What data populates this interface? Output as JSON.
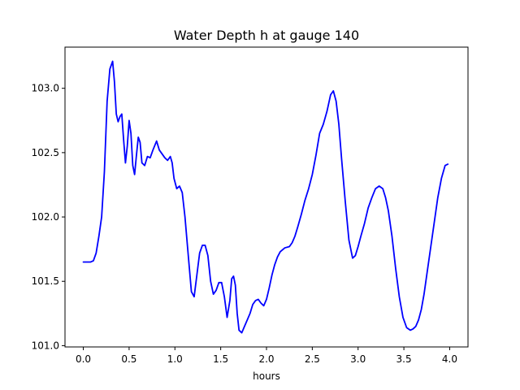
{
  "chart_data": {
    "type": "line",
    "title": "Water Depth h at gauge 140",
    "xlabel": "hours",
    "ylabel": "",
    "xlim": [
      -0.2,
      4.2
    ],
    "ylim": [
      100.99,
      103.32
    ],
    "xticks": [
      0.0,
      0.5,
      1.0,
      1.5,
      2.0,
      2.5,
      3.0,
      3.5,
      4.0
    ],
    "xtick_labels": [
      "0.0",
      "0.5",
      "1.0",
      "1.5",
      "2.0",
      "2.5",
      "3.0",
      "3.5",
      "4.0"
    ],
    "yticks": [
      101.0,
      101.5,
      102.0,
      102.5,
      103.0
    ],
    "ytick_labels": [
      "101.0",
      "101.5",
      "102.0",
      "102.5",
      "103.0"
    ],
    "grid": false,
    "series": [
      {
        "color": "#0000ff",
        "x": [
          0.0,
          0.04,
          0.08,
          0.11,
          0.14,
          0.17,
          0.2,
          0.23,
          0.26,
          0.29,
          0.32,
          0.34,
          0.36,
          0.38,
          0.4,
          0.42,
          0.44,
          0.46,
          0.48,
          0.5,
          0.52,
          0.54,
          0.56,
          0.58,
          0.6,
          0.62,
          0.64,
          0.67,
          0.7,
          0.73,
          0.76,
          0.8,
          0.83,
          0.86,
          0.89,
          0.92,
          0.95,
          0.97,
          0.99,
          1.02,
          1.05,
          1.08,
          1.11,
          1.14,
          1.18,
          1.21,
          1.24,
          1.27,
          1.3,
          1.33,
          1.36,
          1.39,
          1.42,
          1.45,
          1.48,
          1.51,
          1.54,
          1.57,
          1.6,
          1.62,
          1.64,
          1.66,
          1.68,
          1.7,
          1.73,
          1.76,
          1.79,
          1.82,
          1.85,
          1.88,
          1.91,
          1.94,
          1.97,
          2.0,
          2.03,
          2.06,
          2.09,
          2.12,
          2.15,
          2.2,
          2.25,
          2.28,
          2.31,
          2.34,
          2.38,
          2.42,
          2.46,
          2.5,
          2.54,
          2.58,
          2.62,
          2.66,
          2.7,
          2.73,
          2.76,
          2.79,
          2.82,
          2.86,
          2.9,
          2.94,
          2.97,
          3.0,
          3.03,
          3.07,
          3.11,
          3.15,
          3.19,
          3.23,
          3.27,
          3.3,
          3.33,
          3.37,
          3.41,
          3.45,
          3.49,
          3.53,
          3.57,
          3.6,
          3.63,
          3.66,
          3.69,
          3.72,
          3.75,
          3.79,
          3.83,
          3.87,
          3.91,
          3.95,
          3.98
        ],
        "y": [
          101.65,
          101.65,
          101.65,
          101.66,
          101.72,
          101.85,
          102.0,
          102.35,
          102.9,
          103.15,
          103.21,
          103.05,
          102.8,
          102.74,
          102.78,
          102.8,
          102.6,
          102.42,
          102.55,
          102.75,
          102.65,
          102.4,
          102.33,
          102.48,
          102.62,
          102.58,
          102.42,
          102.4,
          102.47,
          102.46,
          102.52,
          102.59,
          102.52,
          102.49,
          102.46,
          102.44,
          102.47,
          102.42,
          102.3,
          102.22,
          102.24,
          102.19,
          102.0,
          101.75,
          101.42,
          101.38,
          101.55,
          101.72,
          101.78,
          101.78,
          101.7,
          101.5,
          101.4,
          101.43,
          101.49,
          101.49,
          101.38,
          101.22,
          101.35,
          101.52,
          101.54,
          101.47,
          101.25,
          101.12,
          101.1,
          101.15,
          101.2,
          101.25,
          101.32,
          101.35,
          101.36,
          101.33,
          101.31,
          101.36,
          101.45,
          101.55,
          101.63,
          101.69,
          101.73,
          101.76,
          101.77,
          101.8,
          101.85,
          101.92,
          102.02,
          102.13,
          102.22,
          102.33,
          102.48,
          102.65,
          102.72,
          102.82,
          102.95,
          102.98,
          102.9,
          102.72,
          102.45,
          102.12,
          101.82,
          101.68,
          101.7,
          101.77,
          101.85,
          101.95,
          102.07,
          102.15,
          102.22,
          102.24,
          102.22,
          102.15,
          102.05,
          101.85,
          101.6,
          101.38,
          101.22,
          101.14,
          101.12,
          101.13,
          101.15,
          101.2,
          101.28,
          101.4,
          101.55,
          101.75,
          101.95,
          102.15,
          102.3,
          102.4,
          102.41
        ]
      }
    ]
  }
}
